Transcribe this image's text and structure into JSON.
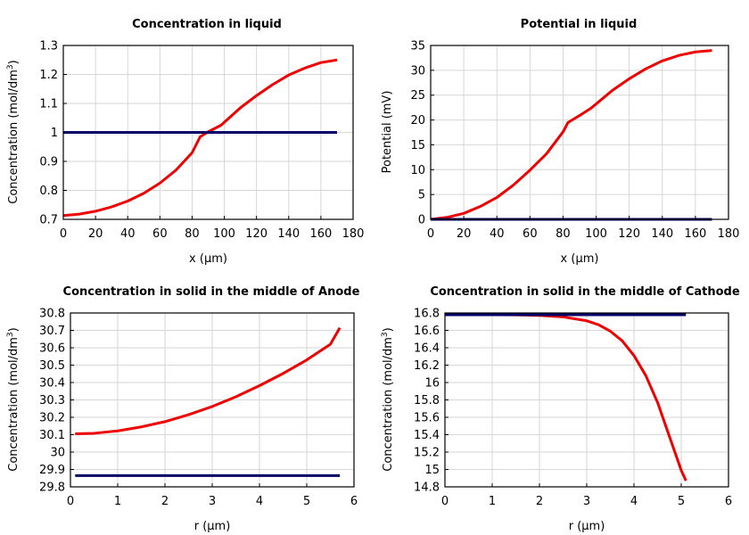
{
  "chart_data": [
    {
      "type": "line",
      "title": "Concentration in liquid",
      "xlabel": "x (µm)",
      "ylabel": "Concentration (mol/dm³)",
      "xlim": [
        0,
        180
      ],
      "ylim": [
        0.7,
        1.3
      ],
      "xticks": [
        "0",
        "20",
        "40",
        "60",
        "80",
        "100",
        "120",
        "140",
        "160",
        "180"
      ],
      "yticks": [
        "0.7",
        "0.8",
        "0.9",
        "1",
        "1.1",
        "1.2",
        "1.3"
      ],
      "grid": true,
      "series": [
        {
          "color": "#ee0000",
          "x": [
            0,
            10,
            20,
            30,
            40,
            50,
            60,
            70,
            80,
            85,
            90,
            98,
            110,
            120,
            130,
            140,
            150,
            160,
            170
          ],
          "y": [
            0.713,
            0.718,
            0.728,
            0.743,
            0.763,
            0.79,
            0.825,
            0.87,
            0.93,
            0.985,
            1.002,
            1.025,
            1.085,
            1.127,
            1.165,
            1.198,
            1.222,
            1.241,
            1.25
          ]
        },
        {
          "color": "#000066",
          "x": [
            0,
            170
          ],
          "y": [
            1.0,
            1.0
          ]
        }
      ]
    },
    {
      "type": "line",
      "title": "Potential in liquid",
      "xlabel": "x (µm)",
      "ylabel": "Potential (mV)",
      "xlim": [
        0,
        180
      ],
      "ylim": [
        0,
        35
      ],
      "xticks": [
        "0",
        "20",
        "40",
        "60",
        "80",
        "100",
        "120",
        "140",
        "160",
        "180"
      ],
      "yticks": [
        "0",
        "5",
        "10",
        "15",
        "20",
        "25",
        "30",
        "35"
      ],
      "grid": true,
      "series": [
        {
          "color": "#ee0000",
          "x": [
            0,
            10,
            20,
            30,
            40,
            50,
            60,
            70,
            80,
            83,
            90,
            97,
            110,
            120,
            130,
            140,
            150,
            160,
            170
          ],
          "y": [
            0,
            0.4,
            1.2,
            2.6,
            4.4,
            6.9,
            9.9,
            13.2,
            17.6,
            19.5,
            20.9,
            22.4,
            26.0,
            28.3,
            30.3,
            31.9,
            33.0,
            33.7,
            34.0
          ]
        },
        {
          "color": "#000066",
          "x": [
            0,
            170
          ],
          "y": [
            0,
            0
          ]
        }
      ]
    },
    {
      "type": "line",
      "title": "Concentration in solid in the middle of Anode",
      "xlabel": "r (µm)",
      "ylabel": "Concentration (mol/dm³)",
      "xlim": [
        0,
        6
      ],
      "ylim": [
        29.8,
        30.8
      ],
      "xticks": [
        "0",
        "1",
        "2",
        "3",
        "4",
        "5",
        "6"
      ],
      "yticks": [
        "29.8",
        "29.9",
        "30",
        "30.1",
        "30.2",
        "30.3",
        "30.4",
        "30.5",
        "30.6",
        "30.7",
        "30.8"
      ],
      "grid": true,
      "series": [
        {
          "color": "#ee0000",
          "x": [
            0.1,
            0.5,
            1,
            1.5,
            2,
            2.5,
            3,
            3.5,
            4,
            4.5,
            5,
            5.5,
            5.7
          ],
          "y": [
            30.105,
            30.108,
            30.122,
            30.145,
            30.175,
            30.215,
            30.262,
            30.318,
            30.382,
            30.452,
            30.53,
            30.62,
            30.715
          ]
        },
        {
          "color": "#000066",
          "x": [
            0.1,
            5.7
          ],
          "y": [
            29.865,
            29.865
          ]
        }
      ]
    },
    {
      "type": "line",
      "title": "Concentration in solid in the middle of Cathode",
      "xlabel": "r (µm)",
      "ylabel": "Concentration (mol/dm³)",
      "xlim": [
        0,
        6
      ],
      "ylim": [
        14.8,
        16.8
      ],
      "xticks": [
        "0",
        "1",
        "2",
        "3",
        "4",
        "5",
        "6"
      ],
      "yticks": [
        "14.8",
        "15",
        "15.2",
        "15.4",
        "15.6",
        "15.8",
        "16",
        "16.2",
        "16.4",
        "16.6",
        "16.8"
      ],
      "grid": true,
      "series": [
        {
          "color": "#ee0000",
          "x": [
            0,
            0.5,
            1,
            1.5,
            2,
            2.5,
            3,
            3.25,
            3.5,
            3.75,
            4,
            4.25,
            4.5,
            4.75,
            5,
            5.1
          ],
          "y": [
            16.78,
            16.78,
            16.78,
            16.778,
            16.772,
            16.755,
            16.71,
            16.665,
            16.59,
            16.48,
            16.31,
            16.08,
            15.77,
            15.38,
            14.99,
            14.87
          ]
        },
        {
          "color": "#000066",
          "x": [
            0,
            5.1
          ],
          "y": [
            16.78,
            16.78
          ]
        }
      ]
    }
  ]
}
